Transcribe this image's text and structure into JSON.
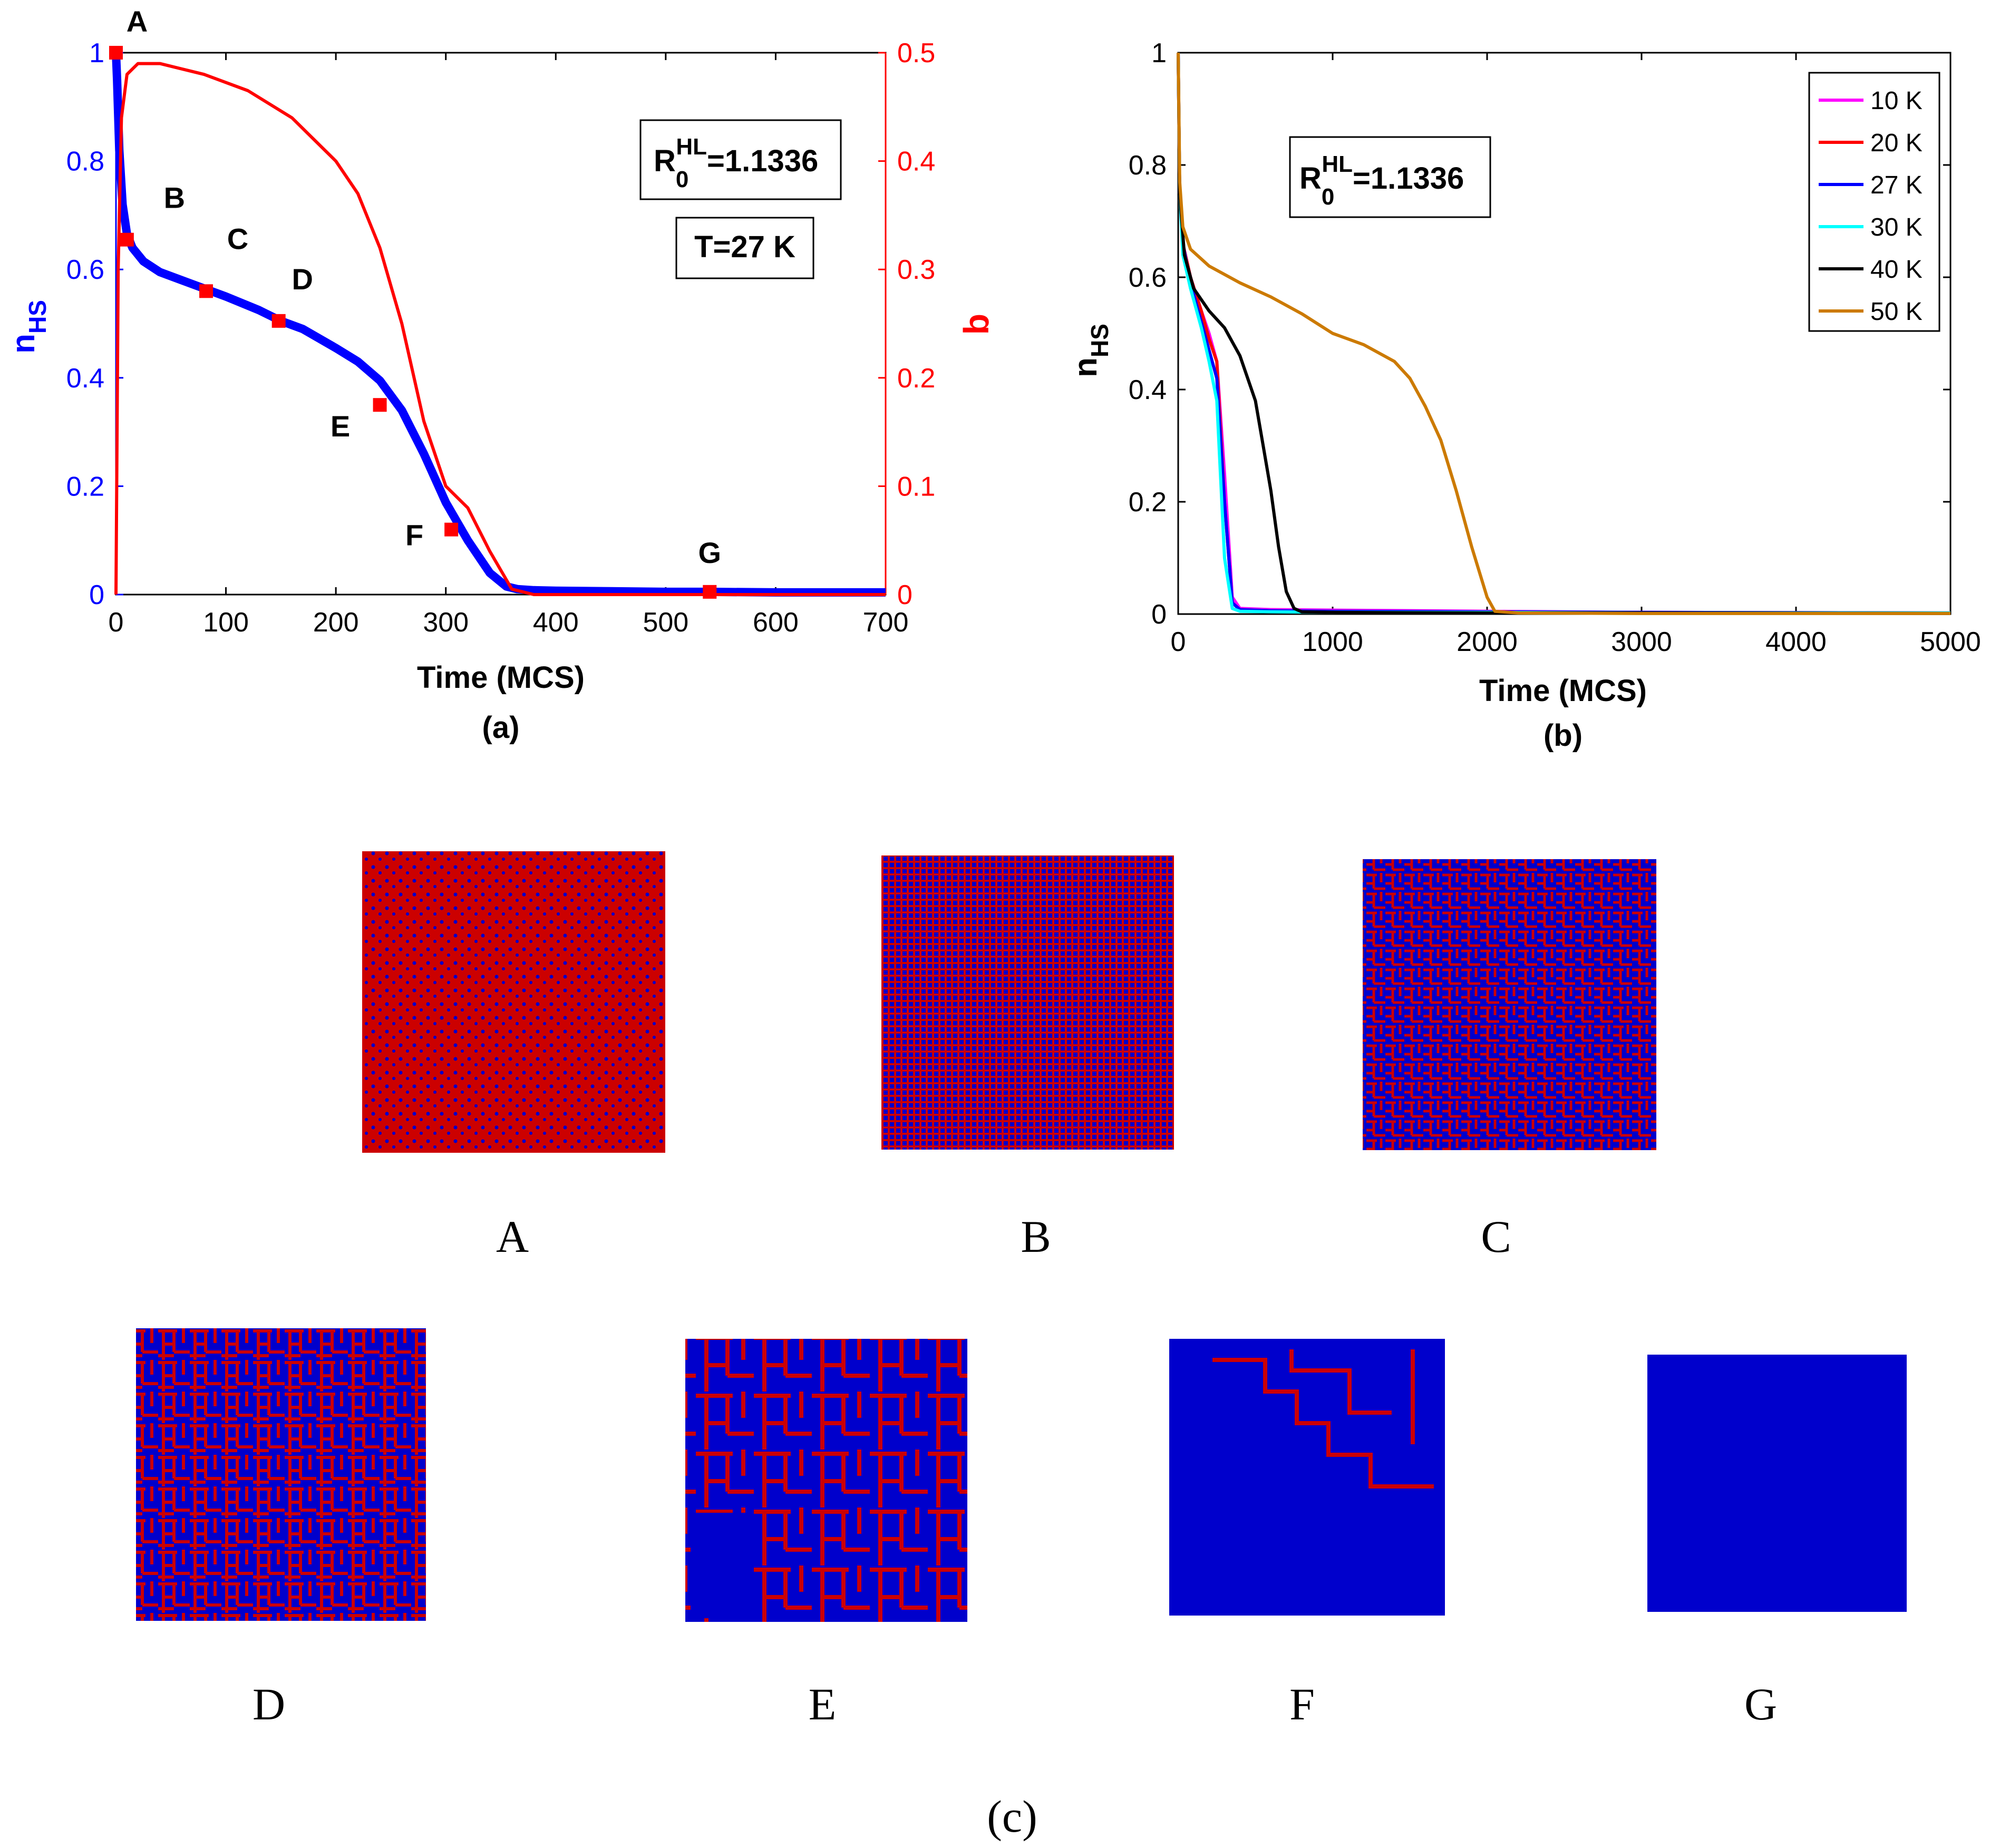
{
  "chart_data": [
    {
      "id": "a",
      "type": "line",
      "caption": "(a)",
      "xlabel": "Time (MCS)",
      "ylabel_left": "n_HS",
      "ylabel_right": "q",
      "xlim": [
        0,
        700
      ],
      "ylim_left": [
        0,
        1
      ],
      "ylim_right": [
        0,
        0.5
      ],
      "xticks": [
        0,
        100,
        200,
        300,
        400,
        500,
        600,
        700
      ],
      "yticks_left": [
        0,
        0.2,
        0.4,
        0.6,
        0.8,
        1
      ],
      "yticks_right": [
        0,
        0.1,
        0.2,
        0.3,
        0.4,
        0.5
      ],
      "annotations": {
        "r_label": "R",
        "r_sub": "0",
        "r_sup": "HL",
        "r_value": "=1.1336",
        "temperature": "T=27 K"
      },
      "series": [
        {
          "name": "n_HS",
          "axis": "left",
          "color": "#0000ff",
          "x": [
            0,
            1,
            3,
            6,
            10,
            15,
            25,
            40,
            60,
            80,
            100,
            130,
            150,
            170,
            200,
            220,
            240,
            260,
            280,
            300,
            320,
            340,
            355,
            365,
            380,
            400,
            450,
            500,
            540,
            600,
            700
          ],
          "y": [
            1.0,
            0.95,
            0.82,
            0.72,
            0.665,
            0.64,
            0.615,
            0.595,
            0.58,
            0.565,
            0.55,
            0.525,
            0.505,
            0.49,
            0.455,
            0.43,
            0.395,
            0.34,
            0.26,
            0.17,
            0.1,
            0.04,
            0.015,
            0.01,
            0.008,
            0.007,
            0.006,
            0.005,
            0.005,
            0.004,
            0.004
          ]
        },
        {
          "name": "q",
          "axis": "right",
          "color": "#ff0000",
          "x": [
            0,
            2,
            5,
            10,
            20,
            40,
            80,
            120,
            160,
            200,
            220,
            240,
            260,
            280,
            300,
            310,
            320,
            340,
            360,
            380,
            400,
            500,
            600,
            700
          ],
          "y": [
            0,
            0.3,
            0.44,
            0.48,
            0.49,
            0.49,
            0.48,
            0.465,
            0.44,
            0.4,
            0.37,
            0.32,
            0.25,
            0.16,
            0.1,
            0.09,
            0.08,
            0.04,
            0.005,
            0,
            0,
            0,
            0,
            0
          ]
        }
      ],
      "markers": [
        {
          "label": "A",
          "x": 0,
          "y": 1.0
        },
        {
          "label": "B",
          "x": 10,
          "y": 0.655
        },
        {
          "label": "C",
          "x": 82,
          "y": 0.56
        },
        {
          "label": "D",
          "x": 148,
          "y": 0.505
        },
        {
          "label": "E",
          "x": 240,
          "y": 0.35
        },
        {
          "label": "F",
          "x": 305,
          "y": 0.12
        },
        {
          "label": "G",
          "x": 540,
          "y": 0.005
        }
      ]
    },
    {
      "id": "b",
      "type": "line",
      "caption": "(b)",
      "xlabel": "Time (MCS)",
      "ylabel": "n_HS",
      "xlim": [
        0,
        5000
      ],
      "ylim": [
        0,
        1
      ],
      "xticks": [
        0,
        1000,
        2000,
        3000,
        4000,
        5000
      ],
      "yticks": [
        0,
        0.2,
        0.4,
        0.6,
        0.8,
        1
      ],
      "annotations": {
        "r_label": "R",
        "r_sub": "0",
        "r_sup": "HL",
        "r_value": "=1.1336"
      },
      "legend_position": "top-right",
      "series": [
        {
          "name": "10 K",
          "color": "#ff00ff",
          "x": [
            0,
            10,
            30,
            80,
            150,
            200,
            250,
            300,
            350,
            400,
            600,
            1000,
            2000,
            3000,
            5000
          ],
          "y": [
            1.0,
            0.75,
            0.66,
            0.6,
            0.54,
            0.5,
            0.45,
            0.25,
            0.03,
            0.01,
            0.008,
            0.007,
            0.005,
            0.003,
            0.002
          ]
        },
        {
          "name": "20 K",
          "color": "#ff0000",
          "x": [
            0,
            10,
            30,
            80,
            150,
            200,
            250,
            300,
            350,
            400,
            600,
            1000,
            2000,
            3000,
            5000
          ],
          "y": [
            1.0,
            0.75,
            0.66,
            0.6,
            0.54,
            0.49,
            0.45,
            0.2,
            0.02,
            0.008,
            0.006,
            0.005,
            0.004,
            0.003,
            0.002
          ]
        },
        {
          "name": "27 K",
          "color": "#0000ff",
          "x": [
            0,
            10,
            30,
            80,
            150,
            200,
            250,
            300,
            350,
            400,
            600,
            1000,
            2000,
            3000,
            5000
          ],
          "y": [
            1.0,
            0.75,
            0.66,
            0.59,
            0.52,
            0.47,
            0.42,
            0.2,
            0.02,
            0.008,
            0.006,
            0.005,
            0.004,
            0.003,
            0.002
          ]
        },
        {
          "name": "30 K",
          "color": "#00ffff",
          "x": [
            0,
            10,
            30,
            80,
            150,
            200,
            250,
            300,
            350,
            400,
            600,
            1000,
            2000,
            3000,
            5000
          ],
          "y": [
            1.0,
            0.75,
            0.64,
            0.58,
            0.51,
            0.45,
            0.38,
            0.1,
            0.01,
            0.005,
            0.004,
            0.003,
            0.003,
            0.002,
            0.002
          ]
        },
        {
          "name": "40 K",
          "color": "#000000",
          "x": [
            0,
            10,
            40,
            100,
            200,
            300,
            400,
            500,
            550,
            600,
            650,
            700,
            750,
            800,
            1000,
            2000,
            3000,
            5000
          ],
          "y": [
            1.0,
            0.75,
            0.64,
            0.58,
            0.54,
            0.51,
            0.46,
            0.38,
            0.3,
            0.22,
            0.12,
            0.04,
            0.01,
            0.004,
            0.003,
            0.002,
            0.002,
            0.001
          ]
        },
        {
          "name": "50 K",
          "color": "#cc7a00",
          "x": [
            0,
            10,
            30,
            80,
            200,
            400,
            600,
            800,
            1000,
            1200,
            1400,
            1500,
            1600,
            1700,
            1800,
            1900,
            2000,
            2050,
            2200,
            3000,
            5000
          ],
          "y": [
            1.0,
            0.77,
            0.69,
            0.65,
            0.62,
            0.59,
            0.565,
            0.535,
            0.5,
            0.48,
            0.45,
            0.42,
            0.37,
            0.31,
            0.22,
            0.12,
            0.03,
            0.005,
            0.002,
            0.001,
            0.001
          ]
        }
      ]
    }
  ],
  "panel_c": {
    "caption": "(c)",
    "colors": {
      "hs": "#cc0000",
      "ls": "#0000cc"
    },
    "snapshots": [
      {
        "label": "A",
        "hs_fraction": 1.0
      },
      {
        "label": "B",
        "hs_fraction": 0.655
      },
      {
        "label": "C",
        "hs_fraction": 0.56
      },
      {
        "label": "D",
        "hs_fraction": 0.505
      },
      {
        "label": "E",
        "hs_fraction": 0.35
      },
      {
        "label": "F",
        "hs_fraction": 0.12
      },
      {
        "label": "G",
        "hs_fraction": 0.005
      }
    ]
  }
}
